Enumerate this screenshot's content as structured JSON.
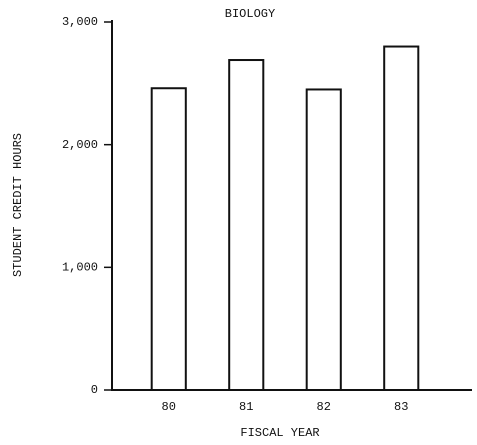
{
  "chart_data": {
    "type": "bar",
    "title": "BIOLOGY",
    "x_label": "FISCAL YEAR",
    "y_label": "STUDENT CREDIT HOURS",
    "categories": [
      "80",
      "81",
      "82",
      "83"
    ],
    "values": [
      2460,
      2690,
      2450,
      2800
    ],
    "color": "#ffffff",
    "ylim": [
      0,
      3000
    ],
    "yticks": [
      0,
      {
        "value": 1000,
        "label": "1,000"
      },
      {
        "value": 2000,
        "label": "2,000"
      },
      {
        "value": 3000,
        "label": "3,000"
      }
    ],
    "grid": false
  }
}
